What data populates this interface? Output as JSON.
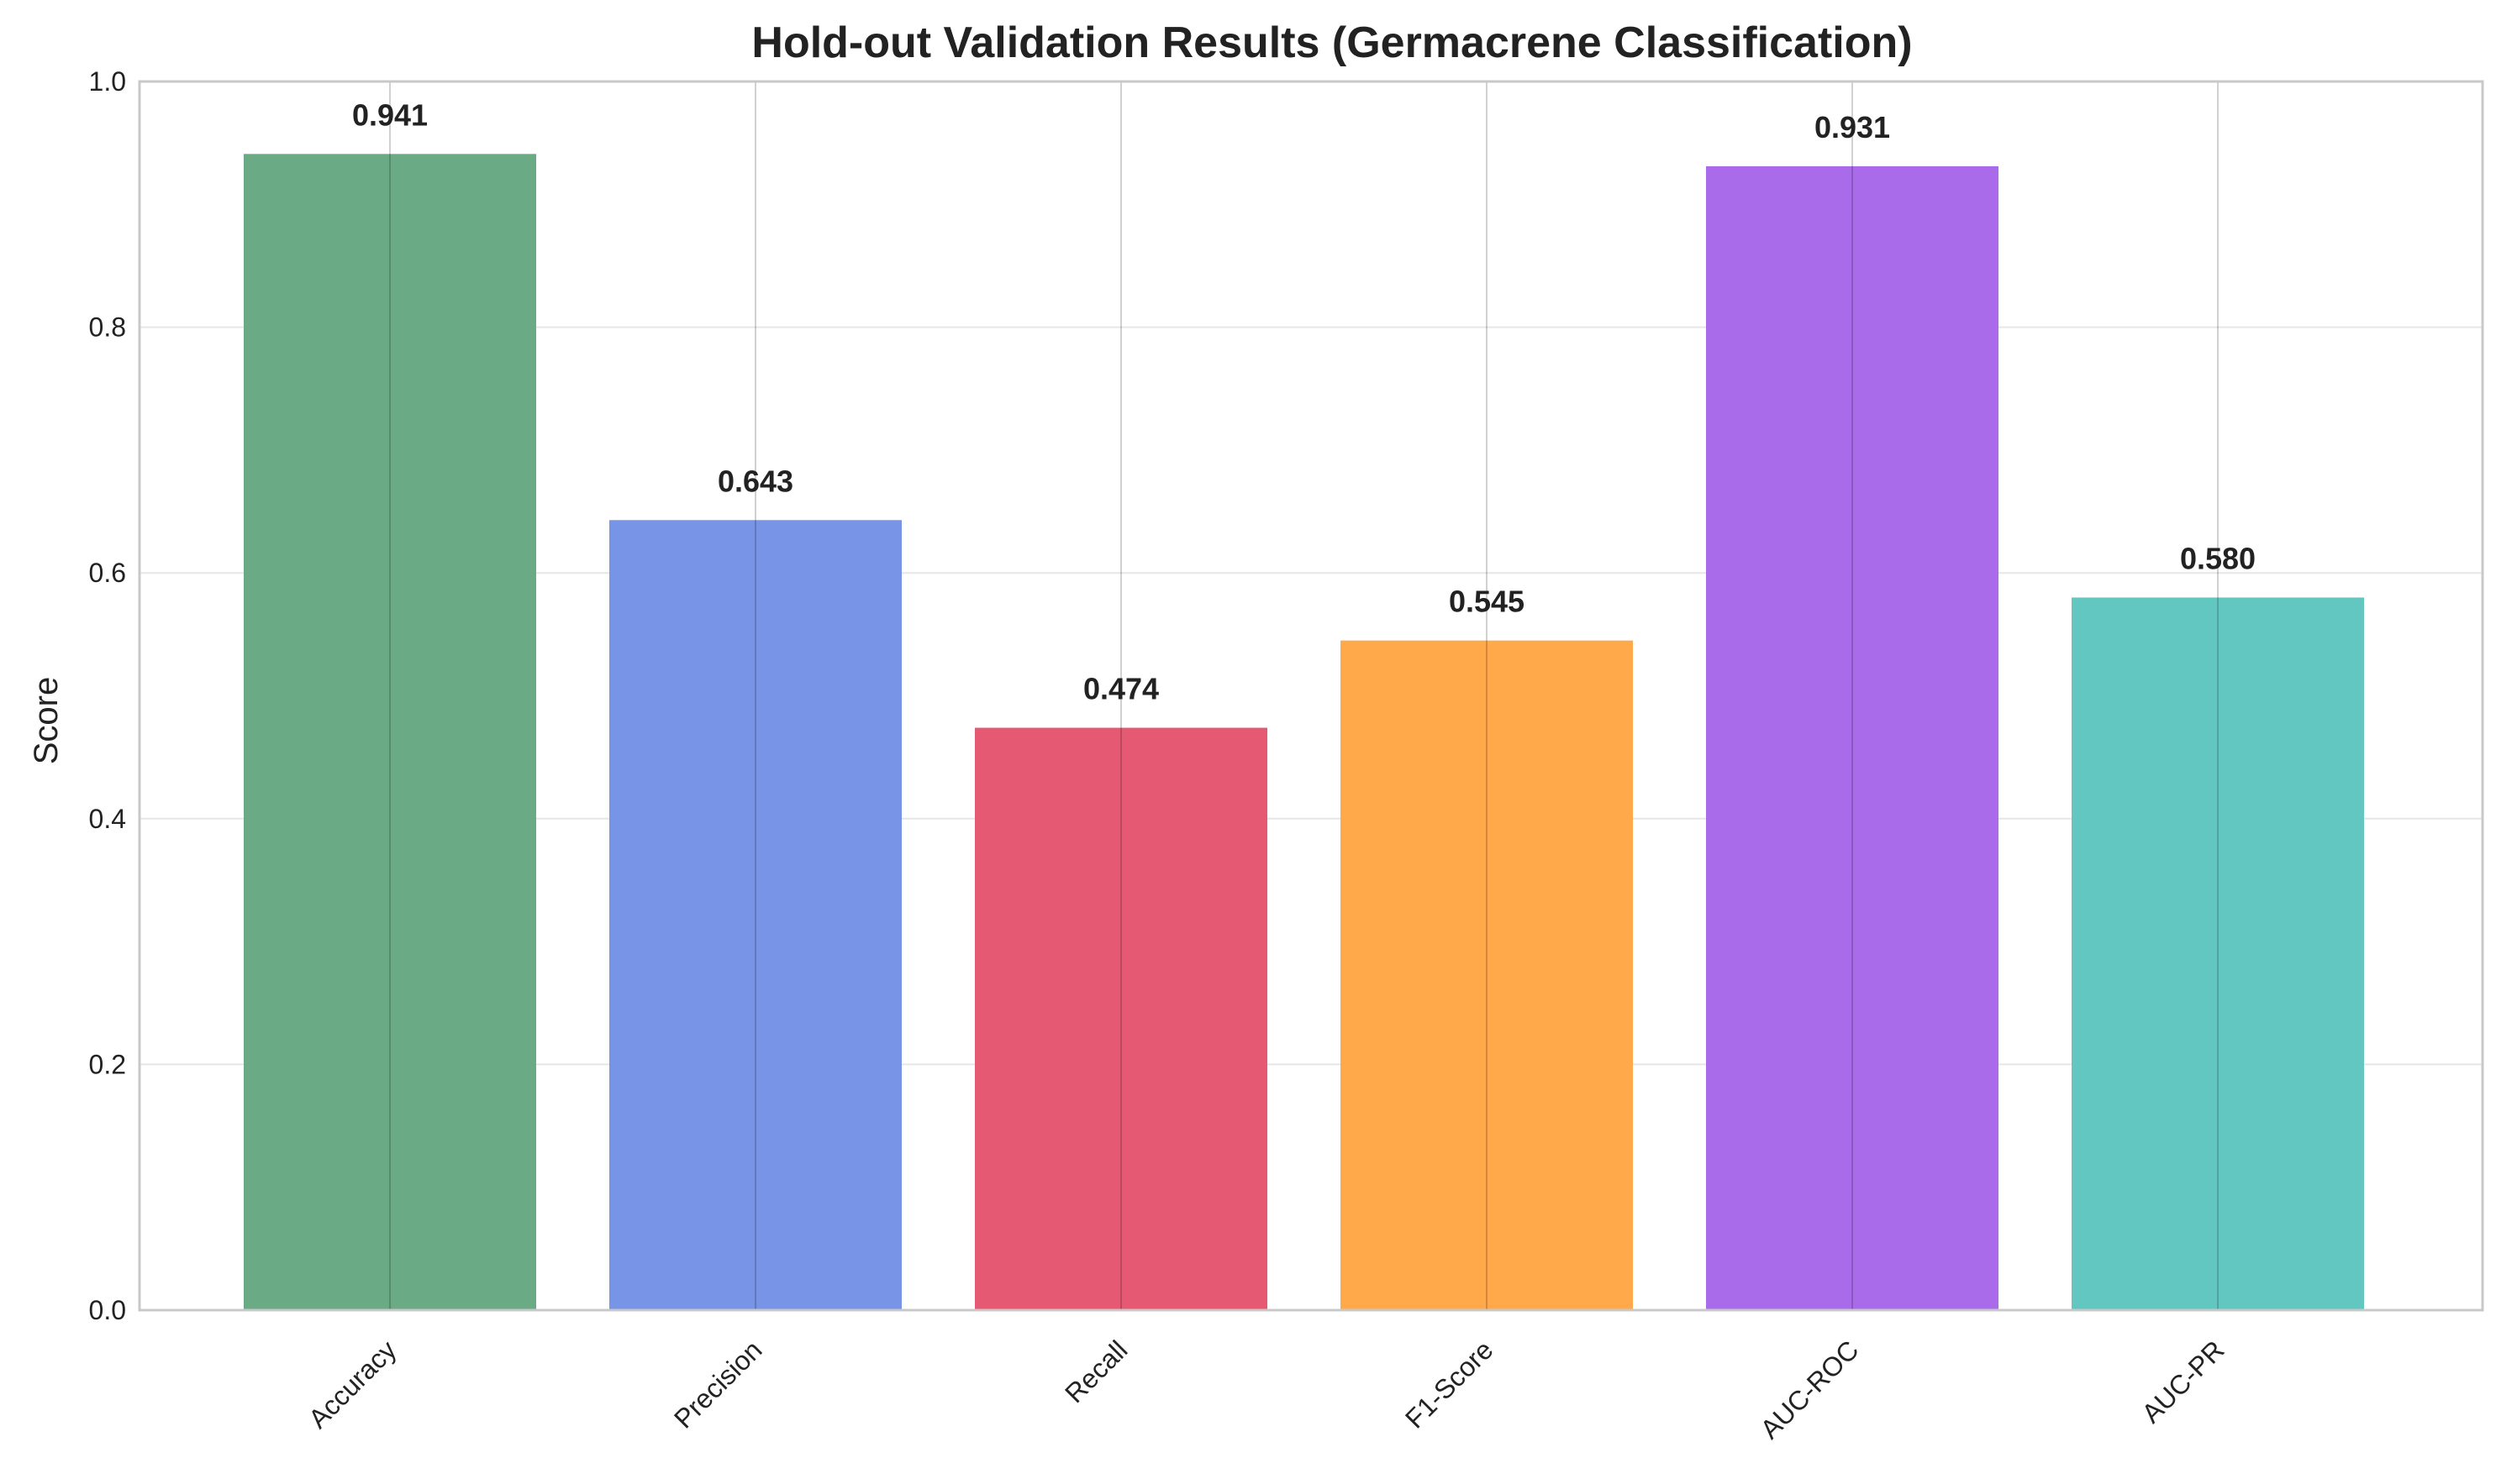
{
  "chart_data": {
    "type": "bar",
    "title": "Hold-out Validation Results (Germacrene Classification)",
    "xlabel": "",
    "ylabel": "Score",
    "ylim": [
      0,
      1.0
    ],
    "yticks": [
      "0.0",
      "0.2",
      "0.4",
      "0.6",
      "0.8",
      "1.0"
    ],
    "categories": [
      "Accuracy",
      "Precision",
      "Recall",
      "F1-Score",
      "AUC-ROC",
      "AUC-PR"
    ],
    "values": [
      0.941,
      0.643,
      0.474,
      0.545,
      0.931,
      0.58
    ],
    "value_labels": [
      "0.941",
      "0.643",
      "0.474",
      "0.545",
      "0.931",
      "0.580"
    ],
    "colors": [
      "#6aaa84",
      "#7794e6",
      "#e55a72",
      "#ffa94a",
      "#a96be9",
      "#62c7c1"
    ],
    "grid": true,
    "legend": "none"
  }
}
